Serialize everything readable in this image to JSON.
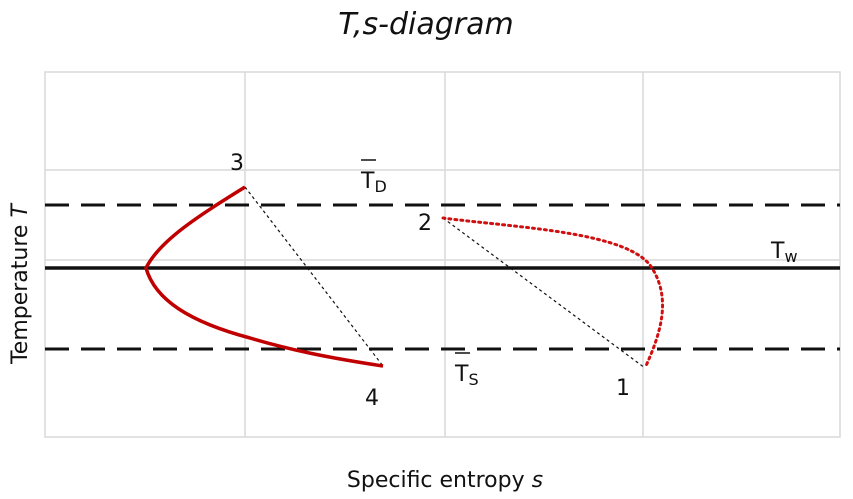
{
  "title": "T,s-diagram",
  "x_label": {
    "text": "Specific entropy",
    "symbol": "s"
  },
  "y_label": {
    "text": "Temperature",
    "symbol": "T"
  },
  "points": [
    "1",
    "2",
    "3",
    "4"
  ],
  "levels": [
    {
      "symbol": "T",
      "subscript": "D"
    },
    {
      "symbol": "T",
      "subscript": "w"
    },
    {
      "symbol": "T",
      "subscript": "S"
    }
  ]
}
